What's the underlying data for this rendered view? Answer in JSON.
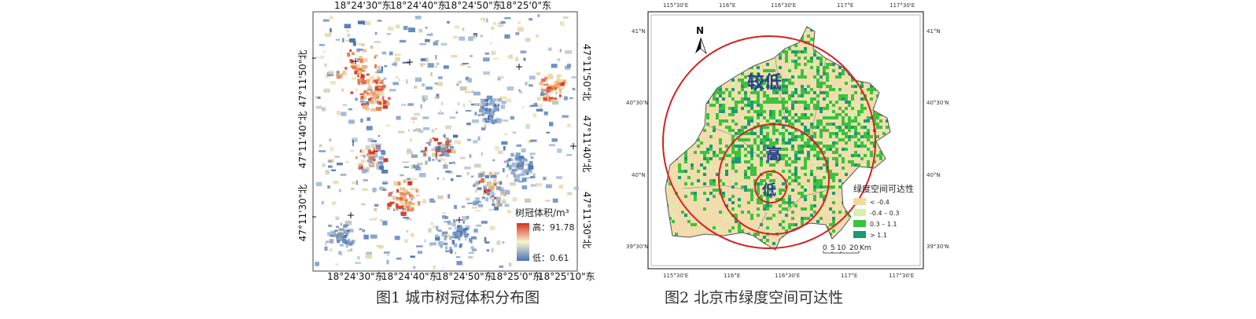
{
  "figure1": {
    "caption": "图1  城市树冠体积分布图",
    "top_ticks": [
      "18°24'30\"东",
      "18°24'40\"东",
      "18°24'50\"东",
      "18°25'0\"东"
    ],
    "bottom_ticks": [
      "18°24'30\"东",
      "18°24'40\"东",
      "18°24'50\"东",
      "18°25'0\"东",
      "18°25'10\"东"
    ],
    "left_ticks": [
      "47°11'50\"北",
      "47°11'40\"北",
      "47°11'30\"北"
    ],
    "right_ticks": [
      "47°11'50\"北",
      "47°11'40\"北",
      "47°11'30\"北"
    ],
    "legend": {
      "title": "树冠体积/m³",
      "high_label": "高：91.78",
      "low_label": "低：0.61",
      "high_color": "#d7301f",
      "mid_color": "#f7f4cf",
      "low_color": "#4a74b4"
    }
  },
  "figure2": {
    "caption": "图2  北京市绿度空间可达性",
    "top_ticks": [
      "115°30'E",
      "116°E",
      "116°30'E",
      "117°E",
      "117°30'E"
    ],
    "bottom_ticks": [
      "115°30'E",
      "116°E",
      "116°30'E",
      "117°E",
      "117°30'E"
    ],
    "left_ticks": [
      "41°N",
      "40°30'N",
      "40°N",
      "39°30'N"
    ],
    "right_ticks": [
      "41°N",
      "40°30'N",
      "40°N",
      "39°30'N"
    ],
    "north_label": "N",
    "zone_labels": [
      "较低",
      "高",
      "低"
    ],
    "legend": {
      "title": "绿度空间可达性",
      "items": [
        {
          "label": "< -0.4",
          "color": "#f5d8a0"
        },
        {
          "label": "-0.4 – 0.3",
          "color": "#d8f0a8"
        },
        {
          "label": "0.3 – 1.1",
          "color": "#3cc23c"
        },
        {
          "label": "> 1.1",
          "color": "#1a9a73"
        }
      ]
    },
    "scale_bar": {
      "ticks": [
        "0",
        "5",
        "10",
        "20"
      ],
      "unit": "Km"
    },
    "ring_color": "#d42020"
  }
}
